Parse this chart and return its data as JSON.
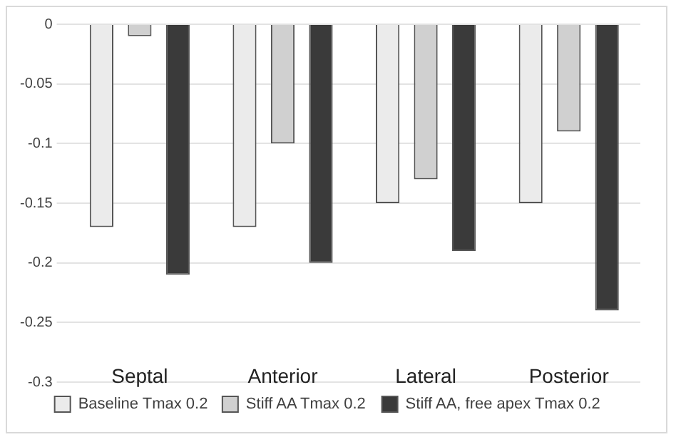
{
  "chart_data": {
    "type": "bar",
    "categories": [
      "Septal",
      "Anterior",
      "Lateral",
      "Posterior"
    ],
    "series": [
      {
        "name": "Baseline Tmax 0.2",
        "color": "#ebebeb",
        "values": [
          -0.17,
          -0.17,
          -0.15,
          -0.15
        ]
      },
      {
        "name": "Stiff AA Tmax 0.2",
        "color": "#d0d0d0",
        "values": [
          -0.01,
          -0.1,
          -0.13,
          -0.09
        ]
      },
      {
        "name": "Stiff AA, free apex Tmax 0.2",
        "color": "#3a3a3a",
        "values": [
          -0.21,
          -0.2,
          -0.19,
          -0.24
        ]
      }
    ],
    "ylim": [
      -0.3,
      0
    ],
    "yticks": [
      -0.3,
      -0.25,
      -0.2,
      -0.15,
      -0.1,
      -0.05,
      0
    ],
    "grid": "y",
    "legend": "bottom"
  }
}
